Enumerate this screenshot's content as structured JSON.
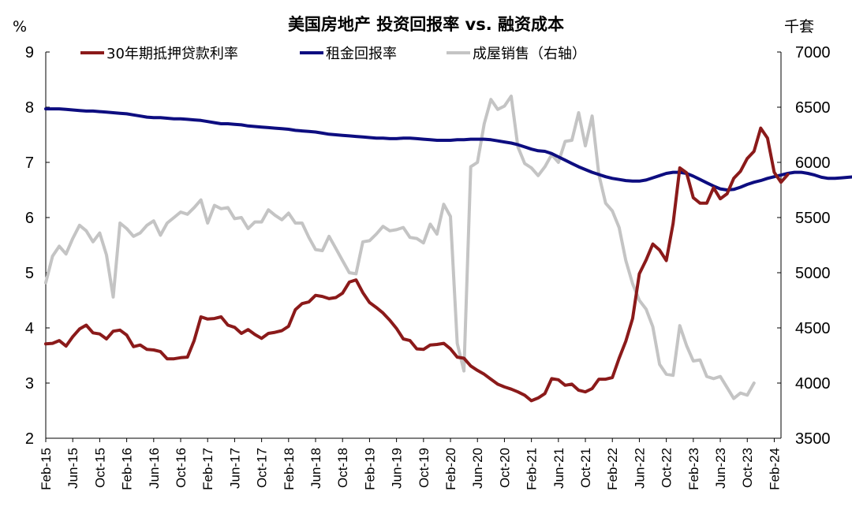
{
  "chart_data": {
    "type": "line",
    "title": "美国房地产 投资回报率 vs. 融资成本",
    "left_unit": "%",
    "right_unit": "千套",
    "y_left": {
      "min": 2,
      "max": 9,
      "ticks": [
        2,
        3,
        4,
        5,
        6,
        7,
        8,
        9
      ]
    },
    "y_right": {
      "min": 3500,
      "max": 7000,
      "ticks": [
        3500,
        4000,
        4500,
        5000,
        5500,
        6000,
        6500,
        7000
      ]
    },
    "x_ticks": [
      "Feb-15",
      "Jun-15",
      "Oct-15",
      "Feb-16",
      "Jun-16",
      "Oct-16",
      "Feb-17",
      "Jun-17",
      "Oct-17",
      "Feb-18",
      "Jun-18",
      "Oct-18",
      "Feb-19",
      "Jun-19",
      "Oct-19",
      "Feb-20",
      "Jun-20",
      "Oct-20",
      "Feb-21",
      "Jun-21",
      "Oct-21",
      "Feb-22",
      "Jun-22",
      "Oct-22",
      "Feb-23",
      "Jun-23",
      "Oct-23",
      "Feb-24"
    ],
    "legend": {
      "placement": "top"
    },
    "series": [
      {
        "name": "30年期抵押贷款利率",
        "color": "#8b1a1a",
        "axis": "left",
        "start": "Feb-15",
        "values": [
          3.71,
          3.72,
          3.77,
          3.67,
          3.84,
          3.98,
          4.05,
          3.91,
          3.89,
          3.8,
          3.94,
          3.96,
          3.87,
          3.66,
          3.69,
          3.61,
          3.6,
          3.57,
          3.44,
          3.44,
          3.46,
          3.47,
          3.77,
          4.2,
          4.16,
          4.17,
          4.2,
          4.05,
          4.01,
          3.9,
          3.97,
          3.88,
          3.81,
          3.9,
          3.92,
          3.95,
          4.03,
          4.33,
          4.44,
          4.47,
          4.59,
          4.57,
          4.53,
          4.55,
          4.63,
          4.83,
          4.87,
          4.64,
          4.46,
          4.37,
          4.27,
          4.14,
          3.99,
          3.8,
          3.77,
          3.62,
          3.61,
          3.69,
          3.7,
          3.72,
          3.62,
          3.47,
          3.45,
          3.31,
          3.23,
          3.16,
          3.07,
          2.98,
          2.93,
          2.89,
          2.84,
          2.78,
          2.68,
          2.73,
          2.81,
          3.08,
          3.06,
          2.96,
          2.98,
          2.87,
          2.84,
          2.9,
          3.07,
          3.07,
          3.1,
          3.45,
          3.76,
          4.17,
          4.98,
          5.23,
          5.52,
          5.41,
          5.22,
          5.89,
          6.9,
          6.81,
          6.36,
          6.26,
          6.26,
          6.54,
          6.34,
          6.43,
          6.71,
          6.84,
          7.07,
          7.2,
          7.62,
          7.44,
          6.82,
          6.64,
          6.78
        ]
      },
      {
        "name": "租金回报率",
        "color": "#0d0d80",
        "axis": "left",
        "start": "Feb-15",
        "values": [
          7.97,
          7.97,
          7.97,
          7.96,
          7.95,
          7.94,
          7.93,
          7.93,
          7.92,
          7.91,
          7.9,
          7.89,
          7.88,
          7.86,
          7.84,
          7.82,
          7.81,
          7.81,
          7.8,
          7.79,
          7.79,
          7.78,
          7.77,
          7.76,
          7.74,
          7.72,
          7.7,
          7.7,
          7.69,
          7.68,
          7.66,
          7.65,
          7.64,
          7.63,
          7.62,
          7.61,
          7.6,
          7.58,
          7.57,
          7.56,
          7.55,
          7.53,
          7.51,
          7.5,
          7.49,
          7.48,
          7.47,
          7.46,
          7.45,
          7.44,
          7.44,
          7.43,
          7.43,
          7.44,
          7.44,
          7.43,
          7.42,
          7.41,
          7.4,
          7.4,
          7.4,
          7.41,
          7.41,
          7.42,
          7.42,
          7.42,
          7.41,
          7.39,
          7.37,
          7.35,
          7.32,
          7.28,
          7.24,
          7.21,
          7.2,
          7.16,
          7.1,
          7.04,
          6.98,
          6.92,
          6.87,
          6.82,
          6.78,
          6.74,
          6.71,
          6.69,
          6.67,
          6.66,
          6.66,
          6.68,
          6.72,
          6.76,
          6.8,
          6.82,
          6.82,
          6.8,
          6.75,
          6.69,
          6.63,
          6.57,
          6.52,
          6.5,
          6.51,
          6.55,
          6.6,
          6.64,
          6.67,
          6.71,
          6.74,
          6.77,
          6.8,
          6.82,
          6.82,
          6.8,
          6.77,
          6.73,
          6.71,
          6.71,
          6.72,
          6.73,
          6.74,
          6.76,
          6.78,
          6.8
        ]
      },
      {
        "name": "成屋销售（右轴）",
        "color": "#c4c4c4",
        "axis": "right",
        "start": "Feb-15",
        "values": [
          4910,
          5150,
          5240,
          5170,
          5310,
          5430,
          5380,
          5280,
          5360,
          5160,
          4780,
          5450,
          5400,
          5330,
          5360,
          5430,
          5470,
          5340,
          5450,
          5500,
          5550,
          5530,
          5590,
          5660,
          5450,
          5610,
          5580,
          5590,
          5490,
          5500,
          5400,
          5460,
          5460,
          5570,
          5520,
          5480,
          5540,
          5450,
          5450,
          5320,
          5210,
          5200,
          5330,
          5220,
          5110,
          5000,
          4990,
          5280,
          5290,
          5350,
          5420,
          5380,
          5390,
          5410,
          5320,
          5310,
          5270,
          5440,
          5350,
          5620,
          5510,
          4360,
          4110,
          5960,
          6000,
          6350,
          6570,
          6480,
          6510,
          6600,
          6140,
          5990,
          5950,
          5880,
          5960,
          6070,
          6000,
          6190,
          6200,
          6450,
          6150,
          6420,
          5890,
          5630,
          5560,
          5410,
          5110,
          4900,
          4750,
          4670,
          4510,
          4170,
          4080,
          4070,
          4520,
          4340,
          4200,
          4210,
          4060,
          4040,
          4060,
          3960,
          3860,
          3910,
          3890,
          4000
        ]
      }
    ]
  }
}
